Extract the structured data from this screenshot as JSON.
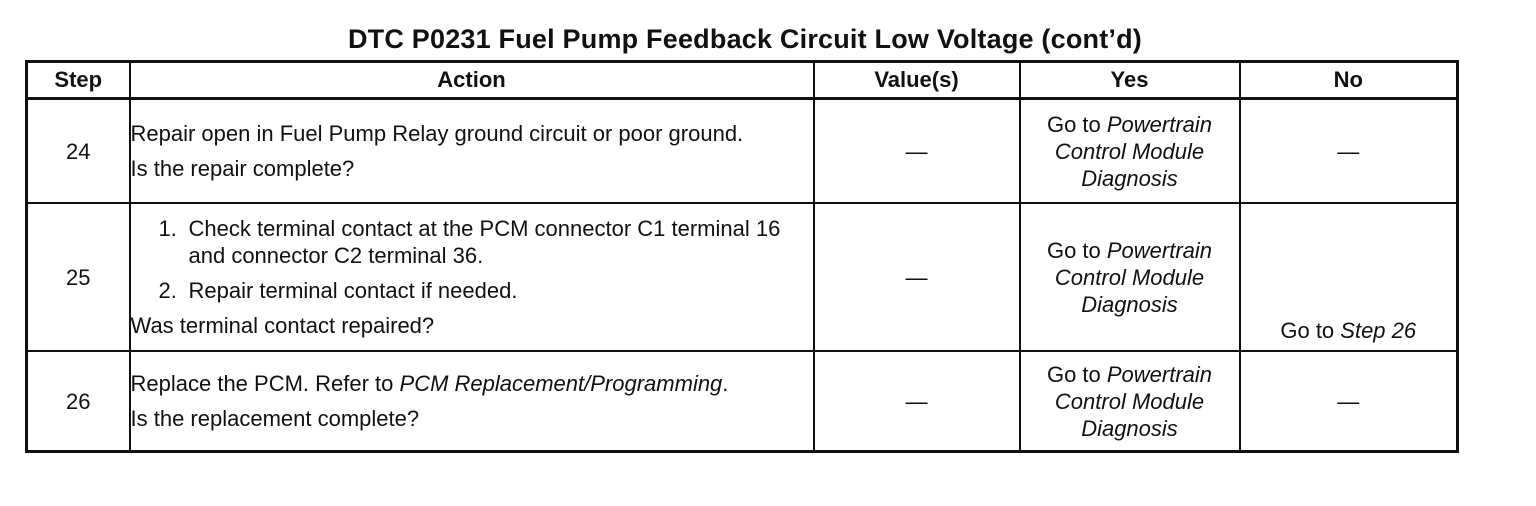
{
  "title": "DTC P0231 Fuel Pump Feedback Circuit Low Voltage  (cont’d)",
  "columns": {
    "step": "Step",
    "action": "Action",
    "values": "Value(s)",
    "yes": "Yes",
    "no": "No"
  },
  "rows": [
    {
      "step": "24",
      "action_line1": "Repair open in Fuel Pump Relay ground circuit or poor ground.",
      "action_question": "Is the repair complete?",
      "value": "—",
      "yes_prefix": "Go to ",
      "yes_link": "Powertrain Control Module Diagnosis",
      "no": "—"
    },
    {
      "step": "25",
      "substeps": [
        {
          "num": "1.",
          "text": "Check terminal contact at the PCM connector C1 terminal 16 and connector C2 terminal 36."
        },
        {
          "num": "2.",
          "text": "Repair terminal contact if needed."
        }
      ],
      "action_question": "Was terminal contact repaired?",
      "value": "—",
      "yes_prefix": "Go to ",
      "yes_link": "Powertrain Control Module Diagnosis",
      "no_prefix": "Go to ",
      "no_link": "Step 26"
    },
    {
      "step": "26",
      "action_prefix": "Replace the PCM. Refer to ",
      "action_link": "PCM Replacement/Programming",
      "action_suffix": ".",
      "action_question": "Is the replacement complete?",
      "value": "—",
      "yes_prefix": "Go to ",
      "yes_link": "Powertrain Control Module Diagnosis",
      "no": "—"
    }
  ]
}
